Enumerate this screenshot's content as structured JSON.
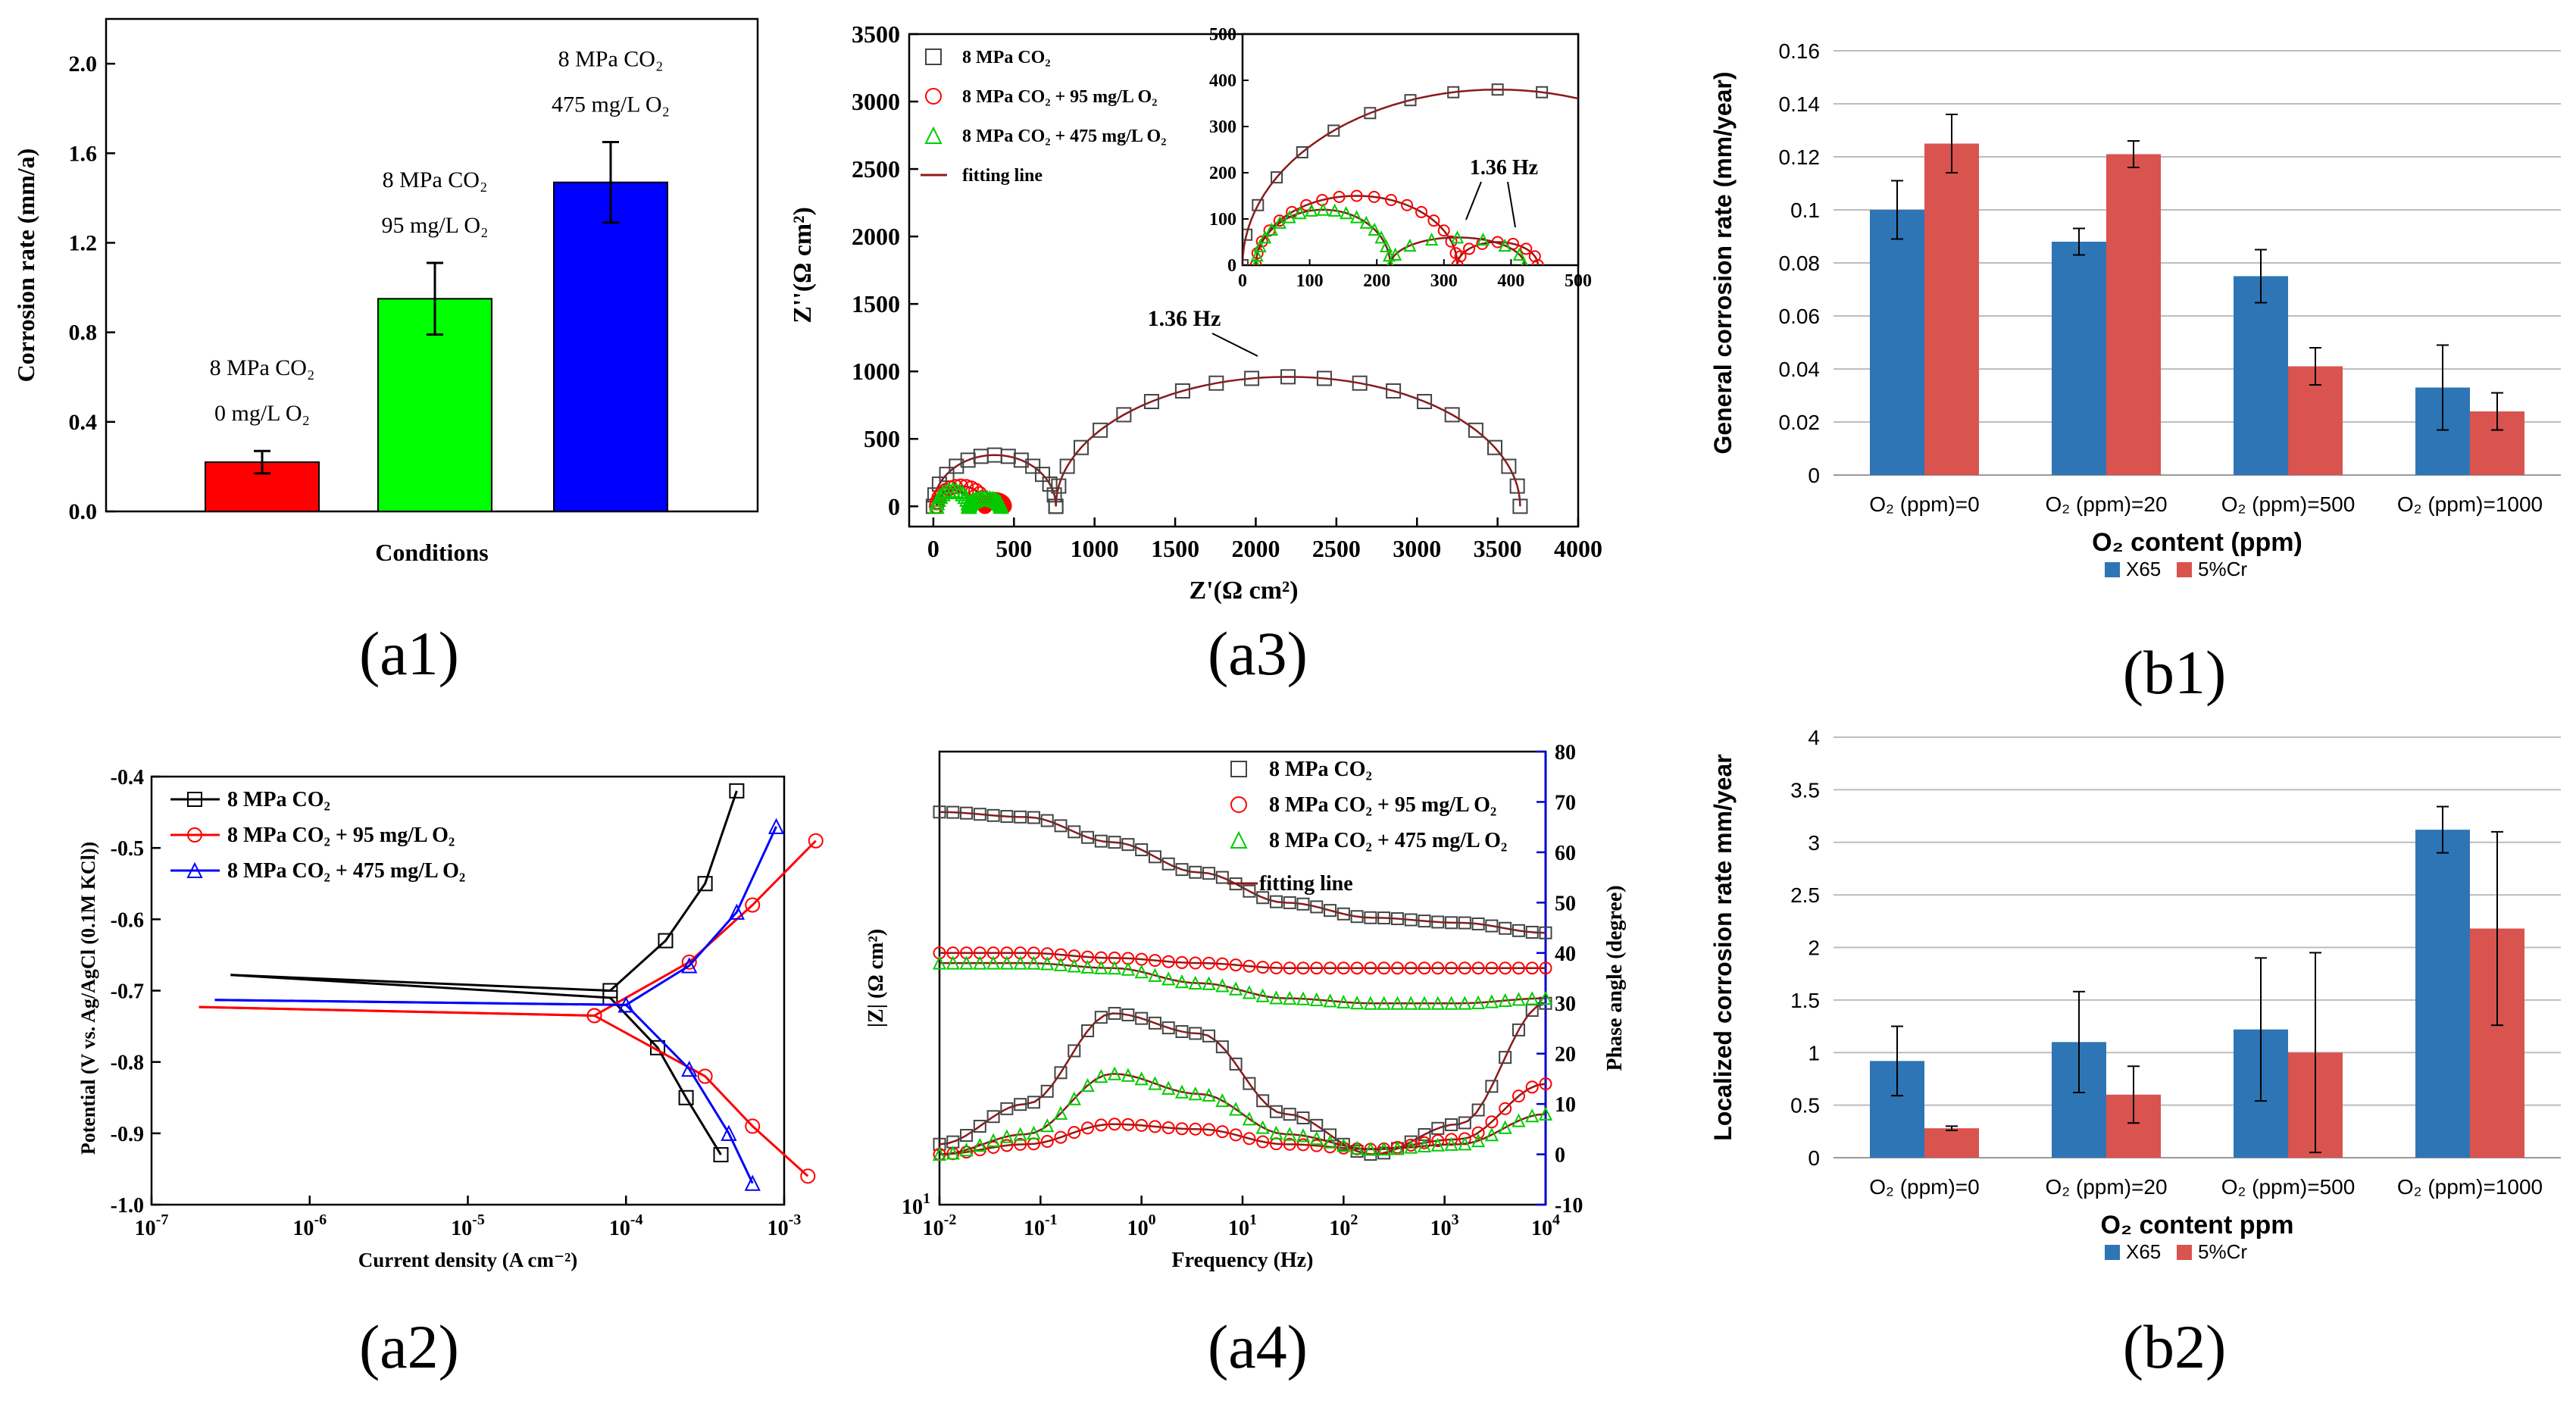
{
  "chart_data": [
    {
      "panel": "(a1)",
      "type": "bar",
      "xlabel": "Conditions",
      "ylabel": "Corrosion rate (mm/a)",
      "ylim": [
        0,
        2.2
      ],
      "yticks": [
        "0.0",
        "0.4",
        "0.8",
        "1.2",
        "1.6",
        "2.0"
      ],
      "bars": [
        {
          "label_lines": [
            "8 MPa CO₂",
            "0 mg/L O₂"
          ],
          "value": 0.22,
          "error": 0.05,
          "color": "#ff0000"
        },
        {
          "label_lines": [
            "8 MPa CO₂",
            "95 mg/L O₂"
          ],
          "value": 0.95,
          "error": 0.16,
          "color": "#00ff00"
        },
        {
          "label_lines": [
            "8 MPa CO₂",
            "475 mg/L O₂"
          ],
          "value": 1.47,
          "error": 0.18,
          "color": "#0000ff"
        }
      ]
    },
    {
      "panel": "(a3)",
      "type": "scatter",
      "xlabel": "Z'(Ω  cm²)",
      "ylabel": "Z''(Ω  cm²)",
      "xlim": [
        -150,
        4000
      ],
      "ylim": [
        -150,
        3500
      ],
      "xticks": [
        "0",
        "500",
        "1000",
        "1500",
        "2000",
        "2500",
        "3000",
        "3500",
        "4000"
      ],
      "yticks": [
        "0",
        "500",
        "1000",
        "1500",
        "2000",
        "2500",
        "3000",
        "3500"
      ],
      "annotation": "1.36 Hz",
      "legend": [
        "8 MPa CO₂",
        "8 MPa CO₂ + 95 mg/L O₂",
        "8 MPa CO₂ + 475 mg/L O₂",
        "fitting line"
      ],
      "series": [
        {
          "name": "8 MPa CO₂",
          "arcs": [
            {
              "x0": 0,
              "x1": 760,
              "peak": 380
            },
            {
              "x0": 760,
              "x1": 3640,
              "peak": 960
            }
          ],
          "color": "#444444"
        },
        {
          "name": "8 MPa CO₂ + 95 mg/L O₂",
          "arcs": [
            {
              "x0": 20,
              "x1": 320,
              "peak": 150
            },
            {
              "x0": 320,
              "x1": 440,
              "peak": 50
            }
          ],
          "color": "#ff0000"
        },
        {
          "name": "8 MPa CO₂ + 475 mg/L O₂",
          "arcs": [
            {
              "x0": 20,
              "x1": 220,
              "peak": 120
            },
            {
              "x0": 220,
              "x1": 420,
              "peak": 60
            }
          ],
          "color": "#00cc00"
        }
      ],
      "inset": {
        "xlim": [
          0,
          500
        ],
        "ylim": [
          0,
          500
        ],
        "xticks": [
          "0",
          "100",
          "200",
          "300",
          "400",
          "500"
        ],
        "yticks": [
          "0",
          "100",
          "200",
          "300",
          "400",
          "500"
        ],
        "annotation": "1.36 Hz"
      }
    },
    {
      "panel": "(b1)",
      "type": "bar",
      "title": "",
      "xlabel": "O₂ content (ppm)",
      "ylabel": "General corrosion rate (mm/year)",
      "ylim": [
        0,
        0.16
      ],
      "yticks": [
        "0",
        "0.02",
        "0.04",
        "0.06",
        "0.08",
        "0.1",
        "0.12",
        "0.14",
        "0.16"
      ],
      "categories": [
        "O₂ (ppm)=0",
        "O₂ (ppm)=20",
        "O₂ (ppm)=500",
        "O₂ (ppm)=1000"
      ],
      "series": [
        {
          "name": "X65",
          "values": [
            0.1,
            0.088,
            0.075,
            0.033
          ],
          "errors": [
            0.011,
            0.005,
            0.01,
            0.016
          ],
          "color": "#2e75b6"
        },
        {
          "name": "5%Cr",
          "values": [
            0.125,
            0.121,
            0.041,
            0.024
          ],
          "errors": [
            0.011,
            0.005,
            0.007,
            0.007
          ],
          "color": "#d9534f"
        }
      ]
    },
    {
      "panel": "(a2)",
      "type": "line",
      "xlabel": "Current density (A cm⁻²)",
      "ylabel": "Potential (V vs. Ag/AgCl (0.1M KCl))",
      "xscale": "log",
      "xlim": [
        -7,
        -3
      ],
      "ylim": [
        -1.0,
        -0.4
      ],
      "xticks": [
        -7,
        -6,
        -5,
        -4,
        -3
      ],
      "yticks": [
        "-1.0",
        "-0.9",
        "-0.8",
        "-0.7",
        "-0.6",
        "-0.5",
        "-0.4"
      ],
      "series": [
        {
          "name": "8 MPa CO₂",
          "ecorr": -0.678,
          "anodic": [
            [
              -4.1,
              -0.7
            ],
            [
              -3.75,
              -0.63
            ],
            [
              -3.5,
              -0.55
            ],
            [
              -3.3,
              -0.42
            ]
          ],
          "cathodic": [
            [
              -4.1,
              -0.71
            ],
            [
              -3.8,
              -0.78
            ],
            [
              -3.62,
              -0.85
            ],
            [
              -3.4,
              -0.93
            ]
          ],
          "color": "#000000"
        },
        {
          "name": "8 MPa CO₂ + 95 mg/L O₂",
          "ecorr": -0.723,
          "anodic": [
            [
              -4.2,
              -0.735
            ],
            [
              -3.6,
              -0.66
            ],
            [
              -3.2,
              -0.58
            ],
            [
              -2.8,
              -0.49
            ]
          ],
          "cathodic": [
            [
              -4.2,
              -0.735
            ],
            [
              -3.5,
              -0.82
            ],
            [
              -3.2,
              -0.89
            ],
            [
              -2.85,
              -0.96
            ]
          ],
          "color": "#ff0000"
        },
        {
          "name": "8 MPa CO₂ + 475 mg/L O₂",
          "ecorr": -0.713,
          "anodic": [
            [
              -4.0,
              -0.72
            ],
            [
              -3.6,
              -0.665
            ],
            [
              -3.3,
              -0.59
            ],
            [
              -3.05,
              -0.47
            ]
          ],
          "cathodic": [
            [
              -4.0,
              -0.72
            ],
            [
              -3.6,
              -0.81
            ],
            [
              -3.35,
              -0.9
            ],
            [
              -3.2,
              -0.97
            ]
          ],
          "color": "#0000ff"
        }
      ]
    },
    {
      "panel": "(a4)",
      "type": "line",
      "xlabel": "Frequency (Hz)",
      "ylabel": "|Z| (Ω cm²)",
      "y2label": "Phase angle (degree)",
      "xscale": "log",
      "xlim": [
        -2,
        4
      ],
      "xticks": [
        -2,
        -1,
        0,
        1,
        2,
        3,
        4
      ],
      "ytick_left": "10",
      "yticks_right": [
        "-10",
        "0",
        "10",
        "20",
        "30",
        "40",
        "50",
        "60",
        "70",
        "80"
      ],
      "legend": [
        "8 MPa CO₂",
        "8 MPa CO₂ + 95 mg/L O₂",
        "8 MPa CO₂ + 475 mg/L O₂",
        "fitting line"
      ],
      "series": [
        {
          "name": "8 MPa CO₂",
          "modulus_level": [
            68,
            67,
            62,
            56,
            50,
            47,
            46,
            44
          ],
          "phase": [
            2,
            10,
            28,
            24,
            8,
            0,
            6,
            30
          ],
          "color": "#444444"
        },
        {
          "name": "8 MPa CO₂ + 95 mg/L O₂",
          "modulus_level": [
            40,
            40,
            39,
            38,
            37,
            37,
            37,
            37
          ],
          "phase": [
            0,
            2,
            6,
            5,
            2,
            1,
            3,
            14
          ],
          "color": "#ff0000"
        },
        {
          "name": "8 MPa CO₂ + 475 mg/L O₂",
          "modulus_level": [
            38,
            38,
            37,
            34,
            31,
            30,
            30,
            31
          ],
          "phase": [
            0,
            4,
            16,
            12,
            4,
            1,
            2,
            8
          ],
          "color": "#00cc00"
        }
      ]
    },
    {
      "panel": "(b2)",
      "type": "bar",
      "title": "",
      "xlabel": "O₂ content ppm",
      "ylabel": "Localized corrosion rate mm/year",
      "ylim": [
        0,
        4
      ],
      "yticks": [
        "0",
        "0.5",
        "1",
        "1.5",
        "2",
        "2.5",
        "3",
        "3.5",
        "4"
      ],
      "categories": [
        "O₂ (ppm)=0",
        "O₂ (ppm)=20",
        "O₂ (ppm)=500",
        "O₂ (ppm)=1000"
      ],
      "series": [
        {
          "name": "X65",
          "values": [
            0.92,
            1.1,
            1.22,
            3.12
          ],
          "errors": [
            0.33,
            0.48,
            0.68,
            0.22
          ],
          "color": "#2e75b6"
        },
        {
          "name": "5%Cr",
          "values": [
            0.28,
            0.6,
            1.0,
            2.18
          ],
          "errors": [
            0.02,
            0.27,
            0.95,
            0.92
          ],
          "color": "#d9534f"
        }
      ]
    }
  ],
  "panel_labels": [
    "(a1)",
    "(a3)",
    "(b1)",
    "(a2)",
    "(a4)",
    "(b2)"
  ]
}
